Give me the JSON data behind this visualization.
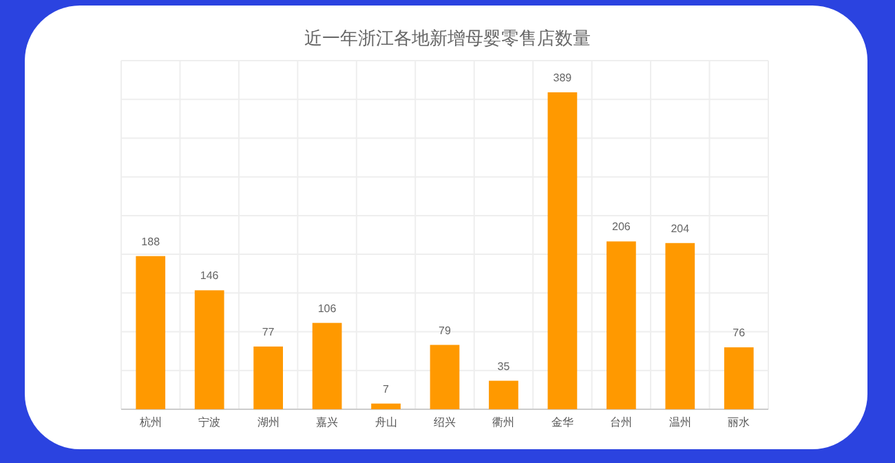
{
  "chart_data": {
    "type": "bar",
    "title": "近一年浙江各地新增母婴零售店数量",
    "categories": [
      "杭州",
      "宁波",
      "湖州",
      "嘉兴",
      "舟山",
      "绍兴",
      "衢州",
      "金华",
      "台州",
      "温州",
      "丽水"
    ],
    "values": [
      188,
      146,
      77,
      106,
      7,
      79,
      35,
      389,
      206,
      204,
      76
    ],
    "color": "#ff9900",
    "data_labels": true,
    "grid": true
  }
}
